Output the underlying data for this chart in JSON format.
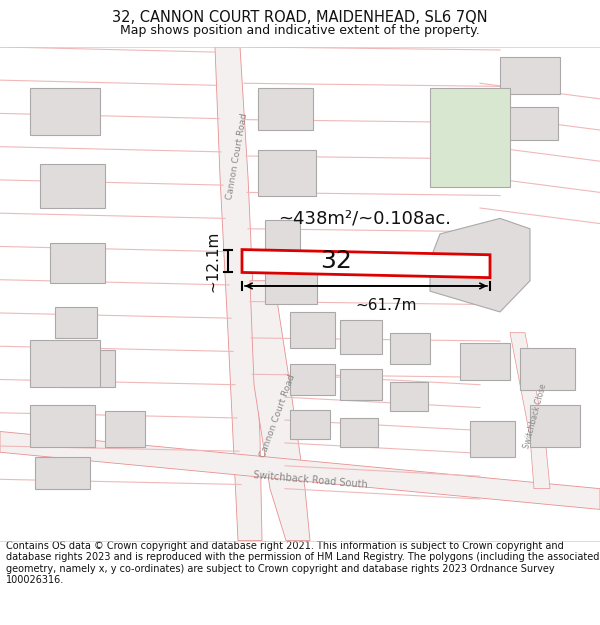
{
  "title": "32, CANNON COURT ROAD, MAIDENHEAD, SL6 7QN",
  "subtitle": "Map shows position and indicative extent of the property.",
  "footer": "Contains OS data © Crown copyright and database right 2021. This information is subject to Crown copyright and database rights 2023 and is reproduced with the permission of HM Land Registry. The polygons (including the associated geometry, namely x, y co-ordinates) are subject to Crown copyright and database rights 2023 Ordnance Survey 100026316.",
  "area_label": "~438m²/~0.108ac.",
  "width_label": "~61.7m",
  "height_label": "~12.1m",
  "number_label": "32",
  "map_bg": "#ffffff",
  "highlight_color": "#dd0000",
  "text_color": "#111111",
  "road_line_color": "#f0b8b8",
  "road_boundary_color": "#e89090",
  "building_fill": "#e0dcdc",
  "building_outline": "#aaa8a8",
  "green_fill": "#d8e8d0",
  "title_fontsize": 10.5,
  "subtitle_fontsize": 9,
  "footer_fontsize": 7.0
}
